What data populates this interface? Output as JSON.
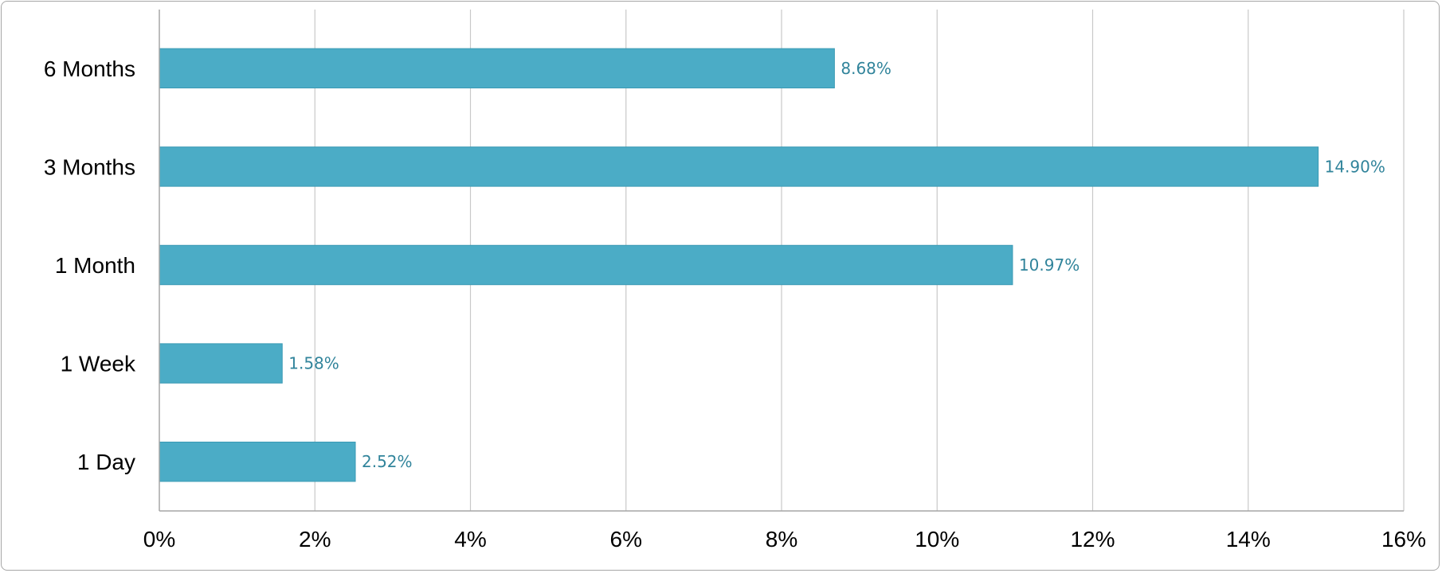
{
  "chart_data": {
    "type": "bar",
    "orientation": "horizontal",
    "categories": [
      "6 Months",
      "3 Months",
      "1 Month",
      "1 Week",
      "1 Day"
    ],
    "values": [
      8.68,
      14.9,
      10.97,
      1.58,
      2.52
    ],
    "data_labels": [
      "8.68%",
      "14.90%",
      "10.97%",
      "1.58%",
      "2.52%"
    ],
    "title": "",
    "xlabel": "",
    "ylabel": "",
    "xlim": [
      0,
      16
    ],
    "x_ticks": [
      0,
      2,
      4,
      6,
      8,
      10,
      12,
      14,
      16
    ],
    "x_tick_labels": [
      "0%",
      "2%",
      "4%",
      "6%",
      "8%",
      "10%",
      "12%",
      "14%",
      "16%"
    ],
    "grid": "vertical",
    "legend": "none",
    "colors": {
      "bar": "#4bacc6",
      "bar_stroke": "#3a9ab4",
      "data_label": "#31849b",
      "grid": "#c8c8c8",
      "axis": "#a6a6a6"
    }
  }
}
